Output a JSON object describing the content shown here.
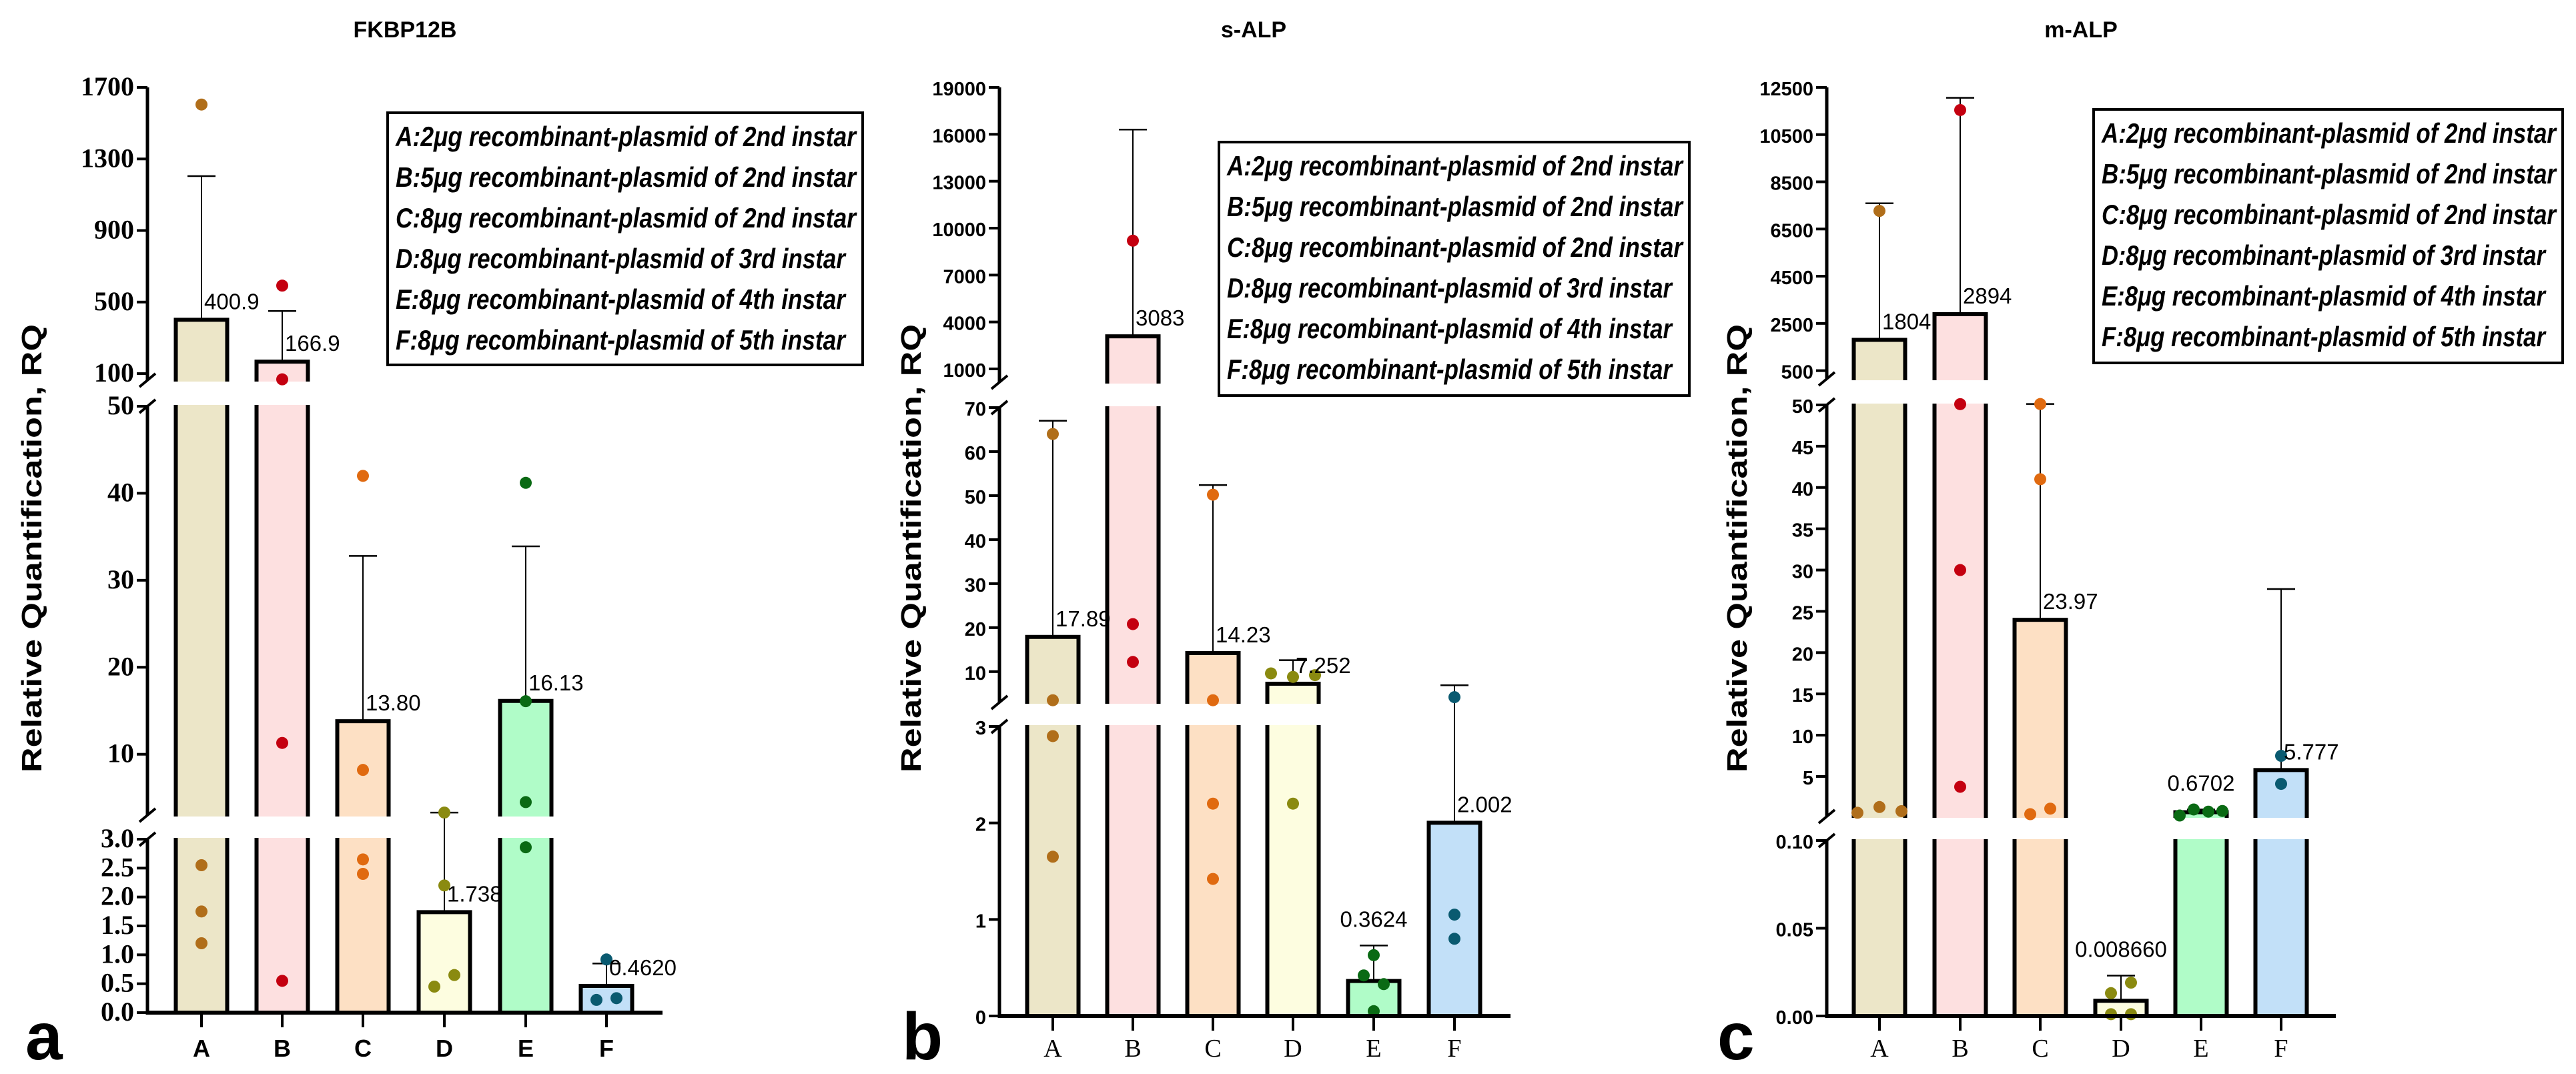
{
  "chart_data": [
    {
      "type": "bar",
      "panel_letter": "a",
      "title": "FKBP12B",
      "ylabel": "Relative Quantification, RQ",
      "categories": [
        "A",
        "B",
        "C",
        "D",
        "E",
        "F"
      ],
      "y_axis_broken": true,
      "y_segments": [
        [
          0,
          3
        ],
        [
          3,
          50
        ],
        [
          63,
          1700
        ]
      ],
      "y_ticks": [
        [
          "0.0",
          "0.5",
          "1.0",
          "1.5",
          "2.0",
          "2.5",
          "3.0"
        ],
        [
          "10",
          "20",
          "30",
          "40",
          "50"
        ],
        [
          "100",
          "500",
          "900",
          "1300",
          "1700"
        ]
      ],
      "bars": [
        {
          "mean": 400.9,
          "label": "400.9",
          "err_top": 1204,
          "points": [
            1604,
            2.55,
            1.75,
            1.2
          ]
        },
        {
          "mean": 166.9,
          "label": "166.9",
          "err_top": 450,
          "points": [
            592,
            68,
            11.3,
            0.55
          ]
        },
        {
          "mean": 13.8,
          "label": "13.80",
          "err_top": 32.8,
          "points": [
            42,
            8.2,
            2.65,
            2.4
          ]
        },
        {
          "mean": 1.738,
          "label": "1.738",
          "err_top": 3.3,
          "points": [
            3.3,
            2.2,
            0.45,
            0.65
          ]
        },
        {
          "mean": 16.13,
          "label": "16.13",
          "err_top": 33.9,
          "points": [
            41.2,
            16.1,
            4.5,
            2.86
          ]
        },
        {
          "mean": 0.462,
          "label": "0.4620",
          "err_top": 0.85,
          "points": [
            0.92,
            0.22,
            0.25
          ]
        }
      ],
      "legend": [
        "A:2μg recombinant-plasmid of 2nd instar",
        "B:5μg recombinant-plasmid of 2nd instar",
        "C:8μg recombinant-plasmid of 2nd instar",
        "D:8μg recombinant-plasmid of 3rd instar",
        "E:8μg recombinant-plasmid of 4th instar",
        "F:8μg recombinant-plasmid of 5th instar"
      ]
    },
    {
      "type": "bar",
      "panel_letter": "b",
      "title": "s-ALP",
      "ylabel": "Relative Quantification, RQ",
      "categories": [
        "A",
        "B",
        "C",
        "D",
        "E",
        "F"
      ],
      "y_axis_broken": true,
      "y_segments": [
        [
          0,
          3
        ],
        [
          3,
          70
        ],
        [
          147,
          19000
        ]
      ],
      "y_ticks": [
        [
          "0",
          "1",
          "2",
          "3"
        ],
        [
          "10",
          "20",
          "30",
          "40",
          "50",
          "60",
          "70"
        ],
        [
          "1000",
          "4000",
          "7000",
          "10000",
          "13000",
          "16000",
          "19000"
        ]
      ],
      "bars": [
        {
          "mean": 17.89,
          "label": "17.89",
          "err_top": 67,
          "points": [
            64,
            3.5,
            2.9,
            1.65
          ]
        },
        {
          "mean": 3083,
          "label": "3083",
          "err_top": 16300,
          "points": [
            9200,
            20.8,
            12.2
          ]
        },
        {
          "mean": 14.23,
          "label": "14.23",
          "err_top": 52.4,
          "points": [
            50.2,
            3.5,
            2.2,
            1.42
          ]
        },
        {
          "mean": 7.252,
          "label": "7.252",
          "err_top": 12.6,
          "points": [
            9.6,
            8.8,
            9.2,
            2.2
          ]
        },
        {
          "mean": 0.3624,
          "label": "0.3624",
          "err_top": 0.73,
          "points": [
            0.63,
            0.42,
            0.33,
            0.05
          ]
        },
        {
          "mean": 2.002,
          "label": "2.002",
          "err_top": 6.9,
          "points": [
            4.2,
            1.05,
            0.8
          ]
        }
      ],
      "legend": [
        "A:2μg recombinant-plasmid of 2nd instar",
        "B:5μg recombinant-plasmid of 2nd instar",
        "C:8μg recombinant-plasmid of 2nd instar",
        "D:8μg recombinant-plasmid of 3rd instar",
        "E:8μg recombinant-plasmid of 4th instar",
        "F:8μg recombinant-plasmid of 5th instar"
      ]
    },
    {
      "type": "bar",
      "panel_letter": "c",
      "title": "m-ALP",
      "ylabel": "Relative Quantification, RQ",
      "categories": [
        "A",
        "B",
        "C",
        "D",
        "E",
        "F"
      ],
      "y_axis_broken": true,
      "y_segments": [
        [
          0,
          0.1
        ],
        [
          0.15,
          50
        ],
        [
          150,
          12500
        ]
      ],
      "y_ticks": [
        [
          "0.00",
          "0.05",
          "0.10"
        ],
        [
          "5",
          "10",
          "15",
          "20",
          "25",
          "30",
          "35",
          "40",
          "45",
          "50"
        ],
        [
          "500",
          "2500",
          "4500",
          "6500",
          "8500",
          "10500",
          "12500"
        ]
      ],
      "bars": [
        {
          "mean": 1804,
          "label": "1804",
          "err_top": 7590,
          "points": [
            7267,
            0.6,
            1.3,
            0.8
          ]
        },
        {
          "mean": 2894,
          "label": "2894",
          "err_top": 12060,
          "points": [
            11540,
            53,
            30,
            3.75
          ]
        },
        {
          "mean": 23.97,
          "label": "23.97",
          "err_top": 53.5,
          "points": [
            53.4,
            41,
            0.43,
            1.1
          ]
        },
        {
          "mean": 0.00866,
          "label": "0.008660",
          "err_top": 0.023,
          "points": [
            0.013,
            0.019,
            0.001,
            0.001
          ]
        },
        {
          "mean": 0.6702,
          "label": "0.6702",
          "err_top": 1.0,
          "points": [
            0.27,
            1.0,
            0.74,
            0.82
          ]
        },
        {
          "mean": 5.777,
          "label": "5.777",
          "err_top": 27.7,
          "points": [
            7.5,
            4.1
          ]
        }
      ],
      "legend": [
        "A:2μg recombinant-plasmid of 2nd instar",
        "B:5μg recombinant-plasmid of 2nd instar",
        "C:8μg recombinant-plasmid of 2nd instar",
        "D:8μg recombinant-plasmid of 3rd instar",
        "E:8μg recombinant-plasmid of 4th instar",
        "F:8μg recombinant-plasmid of 5th instar"
      ]
    }
  ],
  "colors": {
    "bar_fill": [
      "#ece6c8",
      "#fde0e0",
      "#fde0c4",
      "#fdfde0",
      "#b0fcc8",
      "#c2e0f8"
    ],
    "point": [
      "#b06e1a",
      "#c40010",
      "#e06a10",
      "#8a8a10",
      "#0a6a14",
      "#0a5a70"
    ],
    "outline": "#000000"
  }
}
